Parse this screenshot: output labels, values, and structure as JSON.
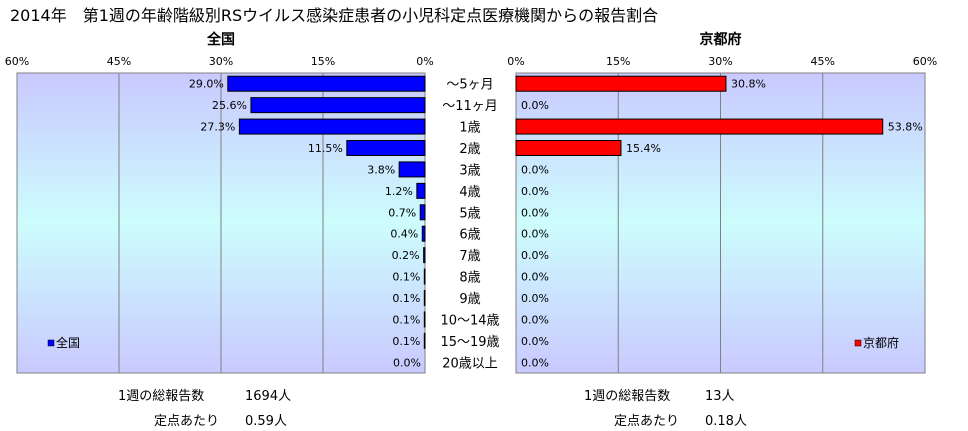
{
  "title": "2014年　第1週の年齢階級別RSウイルス感染症患者の小児科定点医療機関からの報告割合",
  "chart_data": [
    {
      "type": "bar",
      "orientation": "horizontal",
      "title": "全国",
      "legend": "全国",
      "legend_position": "bottom-left",
      "color": "#0000ff",
      "xlim": [
        0,
        60
      ],
      "x_ticks": [
        "60%",
        "45%",
        "30%",
        "15%",
        "0%"
      ],
      "reversed": true,
      "grid": true,
      "categories": [
        "～5ヶ月",
        "～11ヶ月",
        "1歳",
        "2歳",
        "3歳",
        "4歳",
        "5歳",
        "6歳",
        "7歳",
        "8歳",
        "9歳",
        "10～14歳",
        "15～19歳",
        "20歳以上"
      ],
      "values": [
        29.0,
        25.6,
        27.3,
        11.5,
        3.8,
        1.2,
        0.7,
        0.4,
        0.2,
        0.1,
        0.1,
        0.1,
        0.1,
        0.0
      ],
      "labels": [
        "29.0%",
        "25.6%",
        "27.3%",
        "11.5%",
        "3.8%",
        "1.2%",
        "0.7%",
        "0.4%",
        "0.2%",
        "0.1%",
        "0.1%",
        "0.1%",
        "0.1%",
        "0.0%"
      ]
    },
    {
      "type": "bar",
      "orientation": "horizontal",
      "title": "京都府",
      "legend": "京都府",
      "legend_position": "bottom-right",
      "color": "#ff0000",
      "xlim": [
        0,
        60
      ],
      "x_ticks": [
        "0%",
        "15%",
        "30%",
        "45%",
        "60%"
      ],
      "reversed": false,
      "grid": true,
      "categories": [
        "～5ヶ月",
        "～11ヶ月",
        "1歳",
        "2歳",
        "3歳",
        "4歳",
        "5歳",
        "6歳",
        "7歳",
        "8歳",
        "9歳",
        "10～14歳",
        "15～19歳",
        "20歳以上"
      ],
      "values": [
        30.8,
        0.0,
        53.8,
        15.4,
        0.0,
        0.0,
        0.0,
        0.0,
        0.0,
        0.0,
        0.0,
        0.0,
        0.0,
        0.0
      ],
      "labels": [
        "30.8%",
        "0.0%",
        "53.8%",
        "15.4%",
        "0.0%",
        "0.0%",
        "0.0%",
        "0.0%",
        "0.0%",
        "0.0%",
        "0.0%",
        "0.0%",
        "0.0%",
        "0.0%"
      ]
    }
  ],
  "footer": {
    "national": {
      "total_label": "1週の総報告数",
      "total_value": "1694人",
      "per_label": "定点あたり",
      "per_value": "0.59人"
    },
    "kyoto": {
      "total_label": "1週の総報告数",
      "total_value": "13人",
      "per_label": "定点あたり",
      "per_value": "0.18人"
    }
  }
}
